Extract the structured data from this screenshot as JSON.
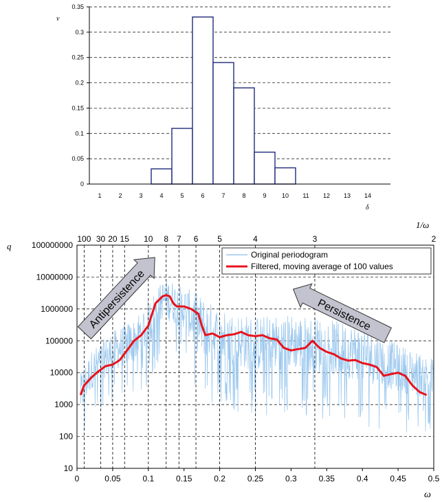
{
  "chart_data": [
    {
      "type": "bar",
      "ylabel": "v",
      "xlabel": "δ",
      "categories": [
        "1",
        "2",
        "3",
        "4",
        "5",
        "6",
        "7",
        "8",
        "9",
        "10",
        "11",
        "12",
        "13",
        "14"
      ],
      "values": [
        0,
        0,
        0,
        0.03,
        0.11,
        0.33,
        0.24,
        0.19,
        0.063,
        0.032,
        0,
        0,
        0,
        0
      ],
      "ylim": [
        0,
        0.35
      ],
      "yticks": [
        "0",
        "0.05",
        "0.1",
        "0.15",
        "0.2",
        "0.25",
        "0.3",
        "0.35"
      ],
      "grid": "horizontal dashed",
      "bar_color": "#1f2a7a"
    },
    {
      "type": "line",
      "xlabel": "ω",
      "ylabel": "q",
      "top_axis_label": "1/ω",
      "top_ticks": [
        {
          "label": "100",
          "x": 0.01
        },
        {
          "label": "30",
          "x": 0.0333
        },
        {
          "label": "20",
          "x": 0.05
        },
        {
          "label": "15",
          "x": 0.0667
        },
        {
          "label": "10",
          "x": 0.1
        },
        {
          "label": "8",
          "x": 0.125
        },
        {
          "label": "7",
          "x": 0.1429
        },
        {
          "label": "6",
          "x": 0.1667
        },
        {
          "label": "5",
          "x": 0.2
        },
        {
          "label": "4",
          "x": 0.25
        },
        {
          "label": "3",
          "x": 0.3333
        },
        {
          "label": "2",
          "x": 0.5
        }
      ],
      "xlim": [
        0,
        0.5
      ],
      "xticks": [
        "0",
        "0.05",
        "0.1",
        "0.15",
        "0.2",
        "0.25",
        "0.3",
        "0.35",
        "0.4",
        "0.45",
        "0.5"
      ],
      "ylog": true,
      "ylim": [
        10,
        100000000
      ],
      "yticks": [
        "10",
        "100",
        "1000",
        "10000",
        "100000",
        "1000000",
        "10000000",
        "100000000"
      ],
      "legend": {
        "position": "top-right",
        "items": [
          "Original periodogram",
          "Filtered, moving average of 100 values"
        ]
      },
      "annotations": [
        "Antipersistence",
        "Persistence"
      ],
      "series": [
        {
          "name": "Original periodogram",
          "color": "#9cc8ee",
          "envelope": {
            "x": [
              0.005,
              0.02,
              0.05,
              0.08,
              0.1,
              0.12,
              0.13,
              0.15,
              0.17,
              0.2,
              0.25,
              0.3,
              0.35,
              0.4,
              0.45,
              0.5
            ],
            "low": [
              30,
              300,
              1000,
              1500,
              3000,
              50000,
              30000,
              20000,
              1000,
              800,
              400,
              500,
              300,
              200,
              150,
              100
            ],
            "high": [
              10000,
              50000,
              200000,
              500000,
              2000000,
              8000000,
              9000000,
              5000000,
              3000000,
              1000000,
              600000,
              700000,
              500000,
              300000,
              80000,
              30000
            ]
          }
        },
        {
          "name": "Filtered, moving average of 100 values",
          "color": "#e8121b",
          "x": [
            0.005,
            0.01,
            0.02,
            0.03,
            0.04,
            0.05,
            0.06,
            0.07,
            0.08,
            0.09,
            0.1,
            0.11,
            0.12,
            0.125,
            0.13,
            0.135,
            0.14,
            0.15,
            0.16,
            0.17,
            0.175,
            0.18,
            0.19,
            0.2,
            0.21,
            0.22,
            0.23,
            0.24,
            0.25,
            0.26,
            0.27,
            0.28,
            0.29,
            0.3,
            0.31,
            0.32,
            0.33,
            0.34,
            0.35,
            0.36,
            0.37,
            0.38,
            0.39,
            0.4,
            0.41,
            0.42,
            0.43,
            0.44,
            0.45,
            0.46,
            0.47,
            0.48,
            0.49
          ],
          "y": [
            2000,
            4000,
            7000,
            11000,
            16000,
            18000,
            25000,
            50000,
            100000,
            150000,
            300000,
            1500000,
            2500000,
            2700000,
            2500000,
            1500000,
            1200000,
            1200000,
            1000000,
            700000,
            300000,
            150000,
            170000,
            130000,
            150000,
            160000,
            190000,
            150000,
            140000,
            150000,
            120000,
            110000,
            60000,
            50000,
            55000,
            60000,
            100000,
            60000,
            45000,
            38000,
            28000,
            24000,
            25000,
            20000,
            18000,
            15000,
            8000,
            9000,
            10000,
            8000,
            4000,
            2500,
            2000
          ]
        }
      ]
    }
  ]
}
